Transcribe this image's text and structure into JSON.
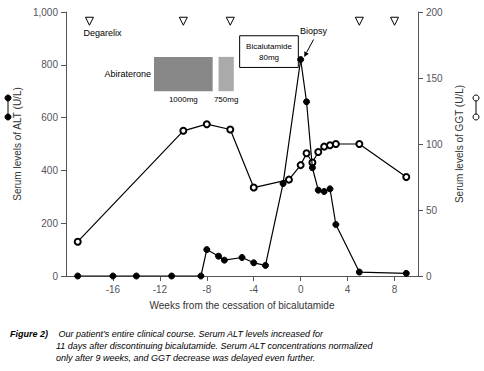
{
  "chart_data": {
    "type": "line",
    "x_label": "Weeks from the cessation of bicalutamide",
    "y_label": "Serum levels of ALT (U/L)",
    "y2_label": "Serum levels of GGT (U/L)",
    "xlim": [
      -20,
      10
    ],
    "xticks": [
      -16,
      -12,
      -8,
      -4,
      0,
      4,
      8
    ],
    "ylim": [
      0,
      1000
    ],
    "yticks": [
      0,
      200,
      400,
      600,
      800,
      1000
    ],
    "y2lim": [
      0,
      200
    ],
    "y2ticks": [
      0,
      50,
      100,
      150,
      200
    ],
    "grid": false,
    "series": [
      {
        "x": [
          -19,
          -10,
          -8,
          -6,
          -4,
          -1,
          0,
          0.5,
          1,
          1.5,
          2,
          2.5,
          3,
          5,
          9
        ],
        "values": [
          26,
          110,
          115,
          111,
          67,
          73,
          84,
          93,
          86,
          94,
          98,
          99,
          100,
          100,
          75
        ],
        "axis": "y2",
        "color": "#000000",
        "marker": "emptyCircle",
        "line_style": "solid"
      },
      {
        "x": [
          -19,
          -16,
          -14,
          -11,
          -8.5,
          -8,
          -7,
          -6.5,
          -5,
          -4,
          -3,
          -1.5,
          0,
          0.5,
          1,
          1.5,
          2,
          2.5,
          3,
          5,
          9
        ],
        "values": [
          0,
          0,
          0,
          0,
          0,
          100,
          75,
          60,
          70,
          50,
          40,
          350,
          820,
          660,
          410,
          325,
          320,
          330,
          195,
          15,
          10
        ],
        "axis": "y",
        "color": "#000000",
        "marker": "circle",
        "line_style": "solid"
      }
    ],
    "annotations": [
      {
        "type": "markers",
        "marker": "triangle_down",
        "label": "Degarelix",
        "label_x": -18.5,
        "x": [
          -18,
          -10,
          -6
        ],
        "y": 965
      },
      {
        "type": "markers",
        "marker": "triangle_down",
        "x": [
          5,
          8
        ],
        "y": 965
      },
      {
        "type": "box",
        "x": [
          -12.5,
          -7.5
        ],
        "y": [
          700,
          830
        ],
        "color": "#888888",
        "texts": [
          "1000mg"
        ],
        "text_position": "below"
      },
      {
        "type": "box",
        "x": [
          -7,
          -5.7
        ],
        "y": [
          700,
          830
        ],
        "color": "#aaaaaa",
        "texts": [
          "750mg"
        ],
        "text_position": "below"
      },
      {
        "type": "label",
        "text": "Abiraterone",
        "x": -12.5,
        "y": 765,
        "anchor": "right"
      },
      {
        "type": "box",
        "x": [
          -5.2,
          -0.2
        ],
        "y": [
          790,
          910
        ],
        "color": "#ffffff",
        "border": "#000000",
        "texts": [
          "Bicalutamide",
          "80mg"
        ],
        "text_position": "inside"
      },
      {
        "type": "arrow",
        "text": "Biopsy",
        "x": 1.1,
        "y": 945,
        "to": [
          0.3,
          830
        ]
      }
    ],
    "caption": {
      "bold": "Figure 2)",
      "italic": " Our patient’s entire clinical course. Serum ALT levels increased for\n11 days after discontinuing bicalutamide. Serum ALT concentrations normalized\nonly after 9 weeks, and GGT decrease was delayed even further."
    }
  }
}
